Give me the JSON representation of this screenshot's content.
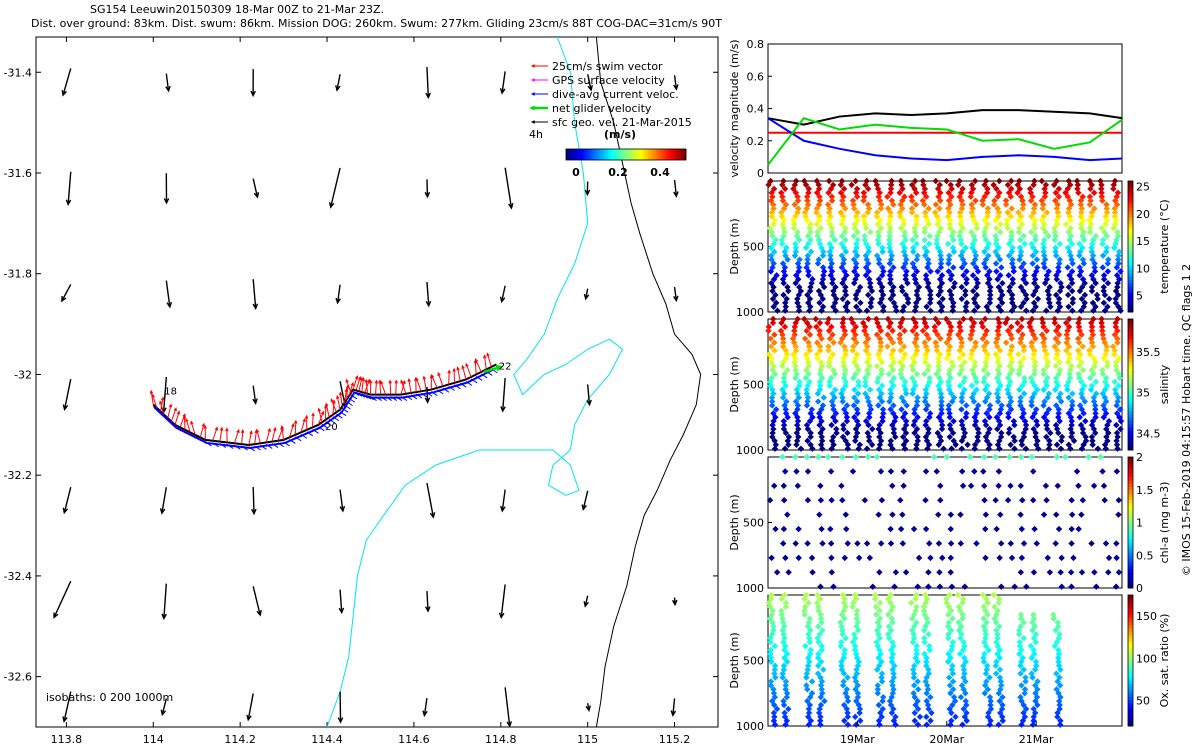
{
  "header": {
    "title_line1": "SG154 Leeuwin20150309 18-Mar 00Z to 21-Mar 23Z.",
    "title_line2": "Dist. over ground: 83km. Dist. swum: 86km. Mission DOG: 260km. Swum: 277km. Gliding 23cm/s 88T COG-DAC=31cm/s 90T"
  },
  "colors": {
    "swim": "#ff0000",
    "gps": "#ff00ff",
    "dac": "#0000ff",
    "net": "#00dd00",
    "geo": "#000000",
    "isobath": "#00e5ee",
    "coast": "#000000"
  },
  "map": {
    "xticks": [
      "113.8",
      "114",
      "114.2",
      "114.4",
      "114.6",
      "114.8",
      "115",
      "115.2"
    ],
    "yticks": [
      "-31.4",
      "-31.6",
      "-31.8",
      "-32",
      "-32.2",
      "-32.4",
      "-32.6"
    ],
    "xlim": [
      113.73,
      115.3
    ],
    "ylim": [
      -32.7,
      -31.33
    ],
    "legend": [
      {
        "label": "25cm/s swim vector",
        "color": "#ff0000"
      },
      {
        "label": "GPS surface velocity",
        "color": "#ff00ff"
      },
      {
        "label": "dive-avg current veloc.",
        "color": "#0000ff"
      },
      {
        "label": "net glider velocity",
        "color": "#00dd00"
      },
      {
        "label": "sfc geo. vel. 21-Mar-2015",
        "color": "#000000"
      }
    ],
    "legend_extra": "4h",
    "colorbar_title": "(m/s)",
    "colorbar_ticks": [
      "0",
      "0.2",
      "0.4"
    ],
    "isobaths_label": "isobaths: 0   200  1000m",
    "day_labels": [
      {
        "text": "18",
        "lon": 114.04,
        "lat": -32.04
      },
      {
        "text": "20",
        "lon": 114.41,
        "lat": -32.11
      },
      {
        "text": "22",
        "lon": 114.81,
        "lat": -31.99
      }
    ]
  },
  "panels": [
    {
      "ylabel": "velocity magnitude (m/s)",
      "yticks": [
        "0",
        "0.2",
        "0.4",
        "0.6",
        "0.8"
      ],
      "ylim": [
        0,
        0.8
      ]
    },
    {
      "ylabel": "Depth (m)",
      "yticks": [
        "500",
        "1000"
      ],
      "cbar_label": "temperature (°C)",
      "cbar_ticks": [
        "5",
        "10",
        "15",
        "20",
        "25"
      ],
      "cbar_range": [
        2,
        26
      ]
    },
    {
      "ylabel": "Depth (m)",
      "yticks": [
        "500",
        "1000"
      ],
      "cbar_label": "salinity",
      "cbar_ticks": [
        "34.5",
        "35",
        "35.5"
      ],
      "cbar_range": [
        34.3,
        35.9
      ]
    },
    {
      "ylabel": "Depth (m)",
      "yticks": [
        "500",
        "1000"
      ],
      "cbar_label": "chl-a (mg m-3)",
      "cbar_ticks": [
        "0",
        "0.5",
        "1",
        "1.5",
        "2"
      ],
      "cbar_range": [
        0,
        2
      ]
    },
    {
      "ylabel": "Depth (m)",
      "yticks": [
        "500",
        "1000"
      ],
      "cbar_label": "Ox. sat. ratio (%)",
      "cbar_ticks": [
        "50",
        "100",
        "150"
      ],
      "cbar_range": [
        20,
        175
      ]
    }
  ],
  "time_axis": {
    "ticks": [
      "19Mar",
      "20Mar",
      "21Mar"
    ],
    "tick_days": [
      1,
      2,
      3
    ],
    "range_days": [
      0,
      3.96
    ]
  },
  "side_note": "© IMOS 15-Feb-2019 04:15:57 Hobart time. QC flags 1  2",
  "chart_data": {
    "type": "line",
    "title": "SG154 Leeuwin20150309 18-Mar 00Z to 21-Mar 23Z.",
    "x": [
      0,
      0.4,
      0.8,
      1.2,
      1.6,
      2.0,
      2.4,
      2.8,
      3.2,
      3.6,
      3.96
    ],
    "xlabel": "",
    "ylabel": "velocity magnitude (m/s)",
    "ylim": [
      0,
      0.8
    ],
    "series": [
      {
        "values": [
          0.34,
          0.3,
          0.35,
          0.37,
          0.36,
          0.37,
          0.39,
          0.39,
          0.38,
          0.37,
          0.34
        ],
        "color": "#000000"
      },
      {
        "values": [
          0.25,
          0.25,
          0.25,
          0.25,
          0.25,
          0.25,
          0.25,
          0.25,
          0.25,
          0.25,
          0.25
        ],
        "color": "#ff0000"
      },
      {
        "values": [
          0.34,
          0.2,
          0.15,
          0.11,
          0.09,
          0.08,
          0.1,
          0.11,
          0.1,
          0.08,
          0.09
        ],
        "color": "#0000ff"
      },
      {
        "values": [
          0.05,
          0.34,
          0.27,
          0.3,
          0.28,
          0.27,
          0.2,
          0.21,
          0.15,
          0.19,
          0.33
        ],
        "color": "#00dd00"
      }
    ]
  }
}
